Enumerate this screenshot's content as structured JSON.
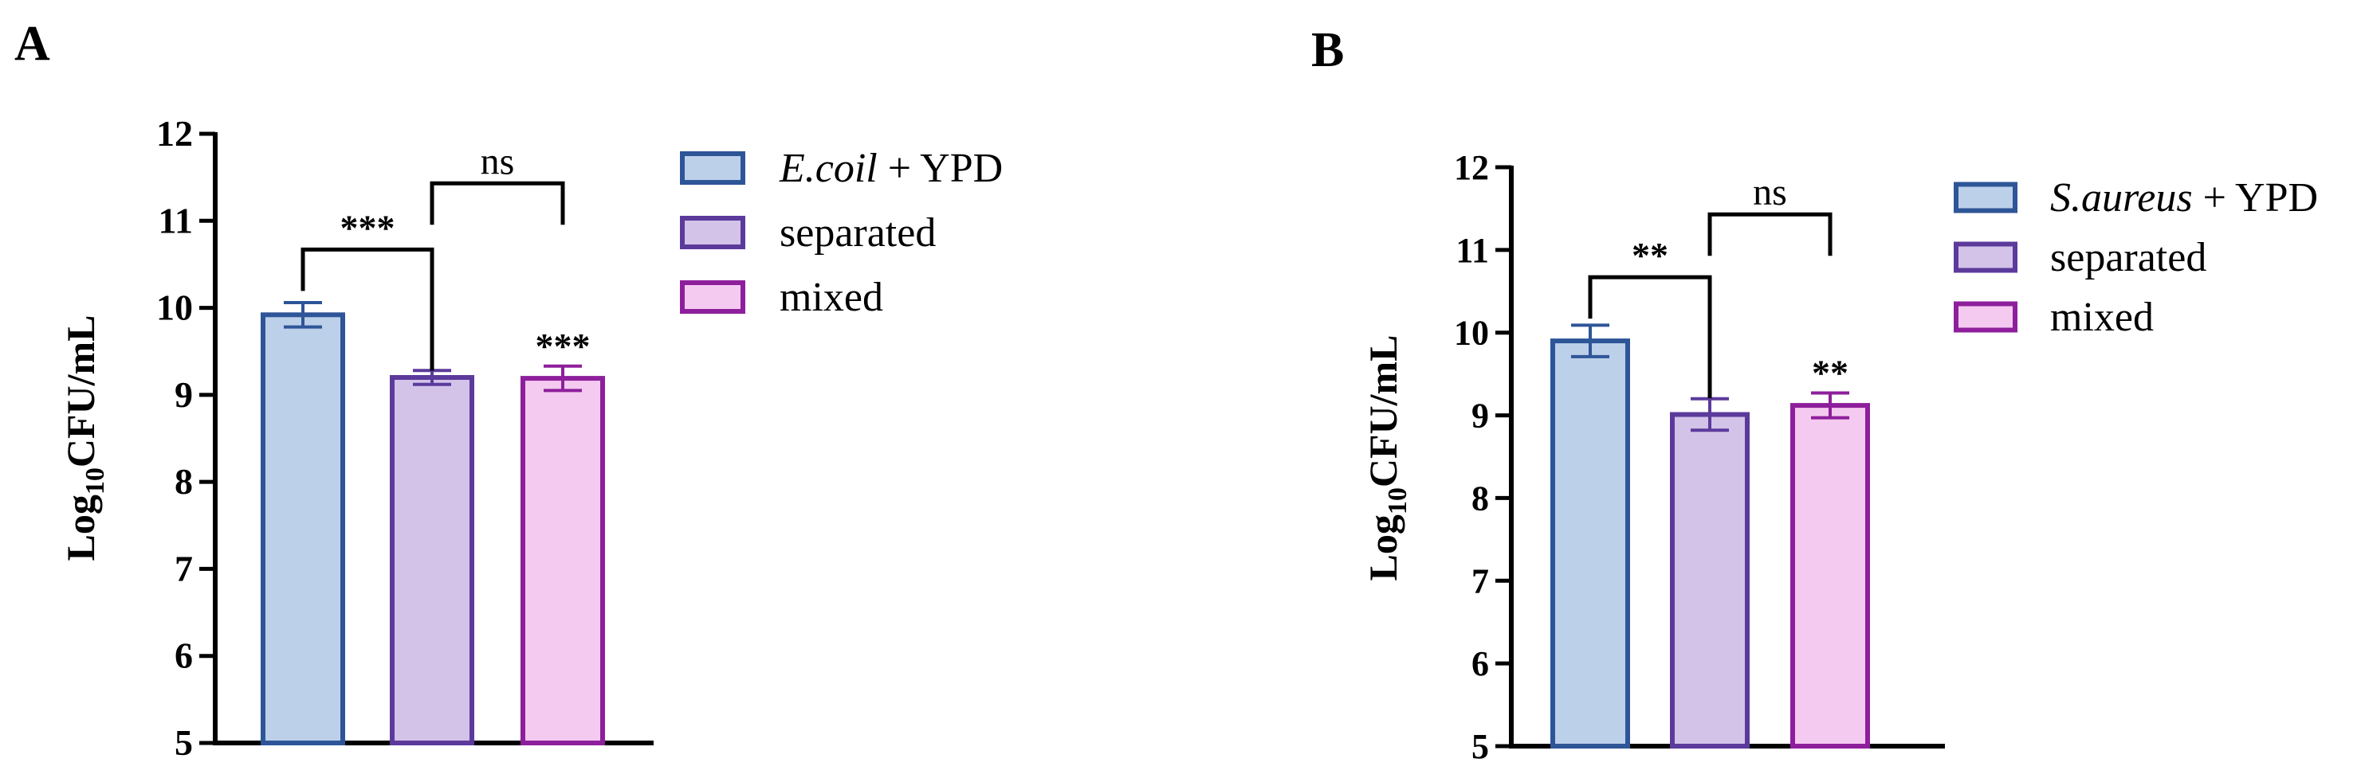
{
  "chart_data": [
    {
      "type": "bar",
      "panel_label": "A",
      "ylabel": {
        "base": "Log",
        "sub": "10",
        "rest": "CFU/mL"
      },
      "ylim": [
        5,
        12
      ],
      "yticks": [
        "5",
        "6",
        "7",
        "8",
        "9",
        "10",
        "11",
        "12"
      ],
      "grid": false,
      "legend_position": "top-right",
      "series": [
        {
          "legend": {
            "italic": "E.coil",
            "rest": " + YPD"
          },
          "value": 9.92,
          "error": 0.14,
          "fill": "#bdd0ea",
          "stroke": "#2e5597"
        },
        {
          "legend": {
            "italic": "",
            "rest": "separated"
          },
          "value": 9.2,
          "error": 0.08,
          "fill": "#d3c3e8",
          "stroke": "#5b3a9c"
        },
        {
          "legend": {
            "italic": "",
            "rest": "mixed"
          },
          "value": 9.19,
          "error": 0.14,
          "fill": "#f5caf1",
          "stroke": "#8e1f9c"
        }
      ],
      "bar_annotations": [
        {
          "bar": 2,
          "text": "***"
        }
      ],
      "brackets": [
        {
          "from": 0,
          "to": 1,
          "text": "***",
          "level": 10.67
        },
        {
          "from": 1,
          "to": 2,
          "text": "ns",
          "level": 11.43
        }
      ]
    },
    {
      "type": "bar",
      "panel_label": "B",
      "ylabel": {
        "base": "Log",
        "sub": "10",
        "rest": "CFU/mL"
      },
      "ylim": [
        5,
        12
      ],
      "yticks": [
        "5",
        "6",
        "7",
        "8",
        "9",
        "10",
        "11",
        "12"
      ],
      "grid": false,
      "legend_position": "top-right",
      "series": [
        {
          "legend": {
            "italic": "S.aureus",
            "rest": " + YPD"
          },
          "value": 9.9,
          "error": 0.19,
          "fill": "#bdd0ea",
          "stroke": "#2e5597"
        },
        {
          "legend": {
            "italic": "",
            "rest": "separated"
          },
          "value": 9.01,
          "error": 0.19,
          "fill": "#d3c3e8",
          "stroke": "#5b3a9c"
        },
        {
          "legend": {
            "italic": "",
            "rest": "mixed"
          },
          "value": 9.12,
          "error": 0.15,
          "fill": "#f5caf1",
          "stroke": "#8e1f9c"
        }
      ],
      "bar_annotations": [
        {
          "bar": 2,
          "text": "**"
        }
      ],
      "brackets": [
        {
          "from": 0,
          "to": 1,
          "text": "**",
          "level": 10.67
        },
        {
          "from": 1,
          "to": 2,
          "text": "ns",
          "level": 11.43
        }
      ]
    }
  ]
}
